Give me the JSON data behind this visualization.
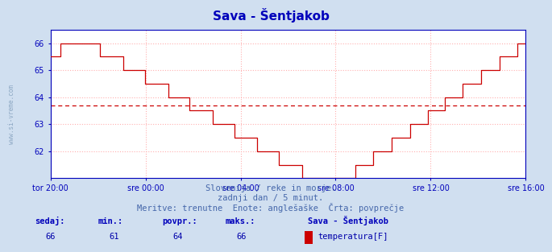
{
  "title": "Sava - Šentjakob",
  "bg_color": "#d0dff0",
  "plot_bg_color": "#ffffff",
  "line_color": "#cc0000",
  "avg_line_color": "#cc0000",
  "avg_value": 63.7,
  "ylim": [
    61.0,
    66.5
  ],
  "yticks": [
    62,
    63,
    64,
    65,
    66
  ],
  "xlabel_ticks": [
    "tor 20:00",
    "sre 00:00",
    "sre 04:00",
    "sre 08:00",
    "sre 12:00",
    "sre 16:00"
  ],
  "grid_color": "#ffb0b0",
  "axis_color": "#0000bb",
  "text_color": "#4466aa",
  "footer_line1": "Slovenija / reke in morje.",
  "footer_line2": "zadnji dan / 5 minut.",
  "footer_line3": "Meritve: trenutne  Enote: anglešaške  Črta: povprečje",
  "stat_label_color": "#0000bb",
  "stat_value_color": "#0000aa",
  "sedaj": 66,
  "min_val": 61,
  "povpr": 64,
  "maks": 66,
  "legend_station": "Sava - Šentjakob",
  "legend_label": "temperatura[F]",
  "legend_color": "#cc0000",
  "watermark": "www.si-vreme.com",
  "watermark_color": "#7090b0",
  "n_points": 288
}
